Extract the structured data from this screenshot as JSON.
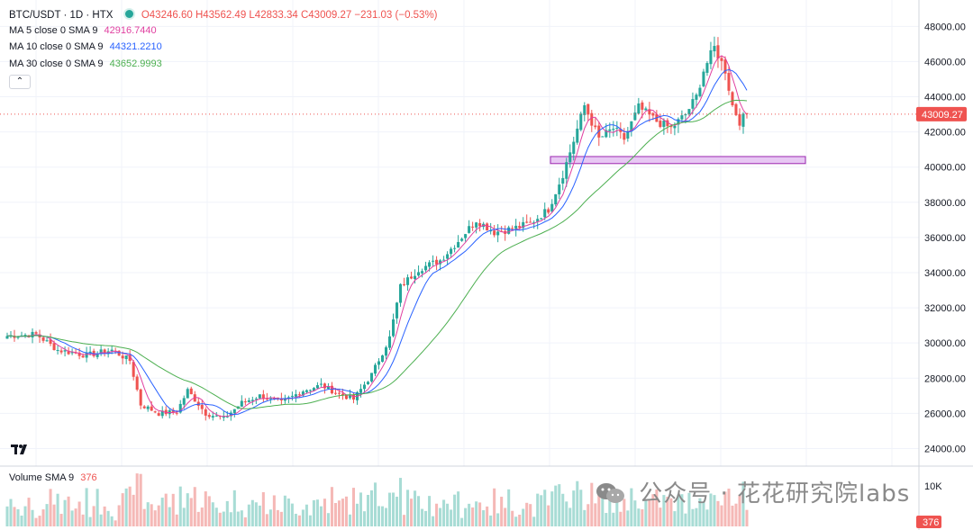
{
  "header": {
    "symbol": "BTC/USDT · 1D · HTX",
    "ohlc": "O43246.60 H43562.49 L42833.34 C43009.27 −231.03 (−0.53%)"
  },
  "indicators": [
    {
      "label": "MA 5 close 0 SMA 9",
      "value": "42916.7440",
      "color": "#e040a0"
    },
    {
      "label": "MA 10 close 0 SMA 9",
      "value": "44321.2210",
      "color": "#2962ff"
    },
    {
      "label": "MA 30 close 0 SMA 9",
      "value": "43652.9993",
      "color": "#4caf50"
    }
  ],
  "collapse_icon": "chevron-up-icon",
  "volume": {
    "label": "Volume SMA 9",
    "value": "376",
    "axis_label": "10K",
    "price_tag": "376"
  },
  "price_tag": "43009.27",
  "watermark": "公众号 · 花花研究院labs",
  "colors": {
    "up": "#26a69a",
    "down": "#ef5350",
    "zone": "#e7c8f3",
    "zone_border": "#9c27b0"
  },
  "chart_data": {
    "type": "candlestick",
    "title": "BTC/USDT · 1D · HTX",
    "ylim": [
      23000,
      49500
    ],
    "yticks": [
      "24000.00",
      "26000.00",
      "28000.00",
      "30000.00",
      "32000.00",
      "34000.00",
      "36000.00",
      "38000.00",
      "40000.00",
      "42000.00",
      "44000.00",
      "46000.00",
      "48000.00"
    ],
    "last_close": 43009.27,
    "support_zone": [
      40200,
      40600
    ],
    "anchors": [
      [
        0,
        30400
      ],
      [
        8,
        30500
      ],
      [
        14,
        29600
      ],
      [
        22,
        29300
      ],
      [
        29,
        29600
      ],
      [
        34,
        29000
      ],
      [
        37,
        26500
      ],
      [
        42,
        26000
      ],
      [
        47,
        26100
      ],
      [
        50,
        27300
      ],
      [
        55,
        26000
      ],
      [
        60,
        25700
      ],
      [
        65,
        26600
      ],
      [
        70,
        27000
      ],
      [
        76,
        26600
      ],
      [
        82,
        27300
      ],
      [
        87,
        27600
      ],
      [
        92,
        27100
      ],
      [
        96,
        26800
      ],
      [
        101,
        28200
      ],
      [
        106,
        30300
      ],
      [
        109,
        33200
      ],
      [
        114,
        34200
      ],
      [
        120,
        34700
      ],
      [
        125,
        35800
      ],
      [
        130,
        37000
      ],
      [
        135,
        36300
      ],
      [
        140,
        36500
      ],
      [
        145,
        36800
      ],
      [
        150,
        37600
      ],
      [
        154,
        39600
      ],
      [
        157,
        41500
      ],
      [
        160,
        43500
      ],
      [
        164,
        41600
      ],
      [
        168,
        42200
      ],
      [
        171,
        41600
      ],
      [
        175,
        43400
      ],
      [
        180,
        42600
      ],
      [
        184,
        42200
      ],
      [
        188,
        43000
      ],
      [
        191,
        44000
      ],
      [
        193,
        45500
      ],
      [
        196,
        46800
      ],
      [
        199,
        45500
      ],
      [
        201,
        43500
      ],
      [
        203,
        42600
      ],
      [
        205,
        43009
      ]
    ]
  }
}
